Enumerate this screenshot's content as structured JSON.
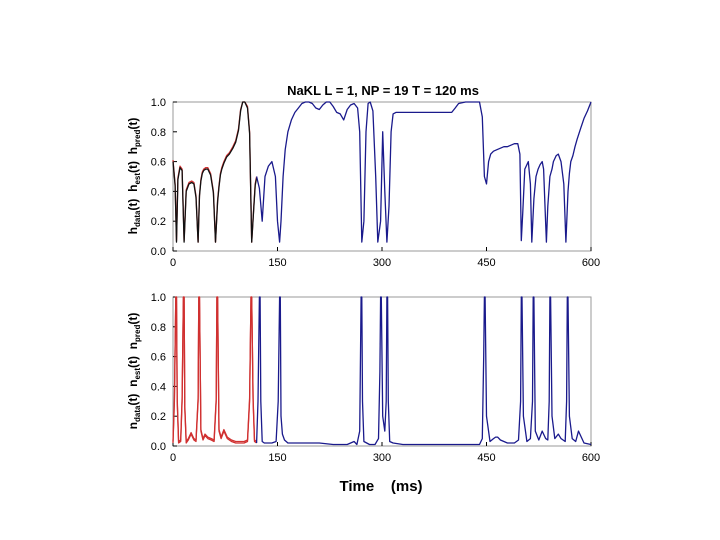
{
  "chart_data": [
    {
      "type": "line",
      "title": "NaKL  L = 1, NP = 19  T = 120 ms",
      "xlabel": "",
      "ylabel": "h_data(t)  h_est(t)  h_pred(t)",
      "ylabel_parts": [
        {
          "base": "h",
          "sub": "data",
          "tail": "(t)"
        },
        {
          "base": "h",
          "sub": "est",
          "tail": "(t)"
        },
        {
          "base": "h",
          "sub": "pred",
          "tail": "(t)"
        }
      ],
      "xlim": [
        0,
        600
      ],
      "ylim": [
        0,
        1.0
      ],
      "xticks": [
        "0",
        "150",
        "300",
        "450",
        "600"
      ],
      "yticks": [
        "0.0",
        "0.2",
        "0.4",
        "0.6",
        "0.8",
        "1.0"
      ],
      "grid": false,
      "legend": "none",
      "series": [
        {
          "color": "#d03030",
          "x": [
            0,
            3,
            5,
            7,
            10,
            13,
            16,
            19,
            23,
            27,
            30,
            33,
            36,
            38,
            40,
            42,
            44,
            47,
            50,
            54,
            58,
            61,
            64,
            66,
            68,
            70,
            73,
            77,
            81,
            86,
            90,
            94,
            97,
            100,
            103,
            107,
            110,
            113,
            116,
            118,
            120
          ],
          "y": [
            0.61,
            0.45,
            0.07,
            0.49,
            0.57,
            0.55,
            0.07,
            0.41,
            0.46,
            0.47,
            0.46,
            0.37,
            0.06,
            0.38,
            0.48,
            0.53,
            0.55,
            0.56,
            0.56,
            0.52,
            0.4,
            0.06,
            0.34,
            0.44,
            0.52,
            0.56,
            0.6,
            0.64,
            0.66,
            0.7,
            0.74,
            0.82,
            0.95,
            1.0,
            1.0,
            0.97,
            0.8,
            0.06,
            0.3,
            0.45,
            0.5
          ]
        },
        {
          "color": "#111111",
          "x": [
            0,
            3,
            5,
            7,
            10,
            13,
            16,
            19,
            23,
            27,
            30,
            33,
            36,
            38,
            40,
            42,
            44,
            47,
            50,
            54,
            58,
            61,
            64,
            66,
            68,
            70,
            73,
            77,
            81,
            86,
            90,
            94,
            97,
            100,
            103,
            107,
            110,
            113,
            116,
            118,
            120
          ],
          "y": [
            0.6,
            0.44,
            0.06,
            0.48,
            0.56,
            0.54,
            0.06,
            0.4,
            0.45,
            0.46,
            0.45,
            0.36,
            0.06,
            0.37,
            0.47,
            0.52,
            0.54,
            0.55,
            0.55,
            0.51,
            0.39,
            0.06,
            0.33,
            0.43,
            0.51,
            0.55,
            0.59,
            0.63,
            0.65,
            0.69,
            0.73,
            0.81,
            0.94,
            1.0,
            1.0,
            0.96,
            0.79,
            0.06,
            0.29,
            0.44,
            0.49
          ]
        },
        {
          "color": "#1a1a8c",
          "x": [
            120,
            124,
            128,
            132,
            137,
            142,
            147,
            150,
            153,
            155,
            158,
            161,
            165,
            170,
            175,
            180,
            185,
            190,
            195,
            200,
            205,
            210,
            215,
            220,
            225,
            230,
            235,
            240,
            245,
            250,
            255,
            260,
            265,
            268,
            271,
            274,
            277,
            280,
            283,
            287,
            291,
            294,
            298,
            301,
            304,
            307,
            310,
            313,
            316,
            320,
            330,
            340,
            360,
            380,
            400,
            405,
            410,
            420,
            430,
            440,
            444,
            447,
            450,
            453,
            456,
            460,
            465,
            470,
            475,
            480,
            485,
            490,
            495,
            498,
            500,
            502,
            505,
            510,
            513,
            515,
            518,
            521,
            524,
            527,
            530,
            532,
            534,
            536,
            538,
            541,
            544,
            546,
            548,
            550,
            553,
            557,
            561,
            564,
            567,
            569,
            571,
            574,
            577,
            580,
            585,
            590,
            595,
            600
          ],
          "y": [
            0.5,
            0.42,
            0.2,
            0.5,
            0.57,
            0.6,
            0.5,
            0.2,
            0.06,
            0.2,
            0.5,
            0.68,
            0.8,
            0.88,
            0.93,
            0.96,
            0.99,
            1.0,
            1.0,
            0.99,
            0.96,
            0.95,
            0.98,
            1.0,
            1.0,
            0.97,
            0.93,
            0.92,
            0.88,
            0.95,
            0.98,
            0.99,
            0.96,
            0.8,
            0.06,
            0.2,
            0.8,
            0.99,
            1.0,
            0.94,
            0.5,
            0.06,
            0.2,
            0.8,
            0.4,
            0.06,
            0.3,
            0.8,
            0.92,
            0.93,
            0.93,
            0.93,
            0.93,
            0.93,
            0.93,
            0.96,
            0.99,
            1.0,
            1.0,
            1.0,
            0.9,
            0.5,
            0.45,
            0.6,
            0.65,
            0.67,
            0.68,
            0.69,
            0.7,
            0.7,
            0.71,
            0.72,
            0.72,
            0.65,
            0.07,
            0.25,
            0.55,
            0.6,
            0.45,
            0.06,
            0.35,
            0.5,
            0.55,
            0.58,
            0.6,
            0.55,
            0.3,
            0.06,
            0.3,
            0.5,
            0.55,
            0.6,
            0.62,
            0.64,
            0.65,
            0.6,
            0.45,
            0.06,
            0.4,
            0.52,
            0.6,
            0.64,
            0.7,
            0.75,
            0.82,
            0.89,
            0.94,
            1.0
          ]
        }
      ]
    },
    {
      "type": "line",
      "xlabel": "Time    (ms)",
      "ylabel": "n_data(t)  n_est(t)  n_pred(t)",
      "ylabel_parts": [
        {
          "base": "n",
          "sub": "data",
          "tail": "(t)"
        },
        {
          "base": "n",
          "sub": "est",
          "tail": "(t)"
        },
        {
          "base": "n",
          "sub": "pred",
          "tail": "(t)"
        }
      ],
      "xlim": [
        0,
        600
      ],
      "ylim": [
        0,
        1.0
      ],
      "xticks": [
        "0",
        "150",
        "300",
        "450",
        "600"
      ],
      "yticks": [
        "0.0",
        "0.2",
        "0.4",
        "0.6",
        "0.8",
        "1.0"
      ],
      "grid": false,
      "legend": "none",
      "series": [
        {
          "color": "#d03030",
          "x": [
            0,
            2,
            4,
            5,
            6,
            8,
            11,
            13,
            15,
            16,
            17,
            19,
            22,
            26,
            30,
            33,
            36,
            37,
            38,
            40,
            43,
            46,
            50,
            55,
            59,
            62,
            63,
            64,
            66,
            69,
            73,
            78,
            84,
            90,
            96,
            102,
            107,
            110,
            112,
            113,
            115,
            117,
            120
          ],
          "y": [
            0.02,
            0.3,
            1.0,
            1.0,
            0.3,
            0.02,
            0.03,
            0.3,
            1.0,
            1.0,
            0.25,
            0.02,
            0.04,
            0.08,
            0.04,
            0.03,
            0.3,
            1.0,
            1.0,
            0.1,
            0.04,
            0.07,
            0.05,
            0.04,
            0.03,
            0.3,
            1.0,
            1.0,
            0.1,
            0.05,
            0.1,
            0.05,
            0.03,
            0.02,
            0.02,
            0.02,
            0.03,
            0.3,
            1.0,
            1.0,
            0.3,
            0.03,
            0.02
          ]
        },
        {
          "color": "#d03030",
          "x": [
            0,
            2,
            4,
            5,
            6,
            8,
            11,
            13,
            15,
            16,
            17,
            19,
            22,
            26,
            30,
            33,
            36,
            37,
            38,
            40,
            43,
            46,
            50,
            55,
            59,
            62,
            63,
            64,
            66,
            69,
            73,
            78,
            84,
            90,
            96,
            102,
            107,
            110,
            112,
            113,
            115,
            117,
            120
          ],
          "y": [
            0.03,
            0.32,
            1.0,
            1.0,
            0.32,
            0.03,
            0.04,
            0.32,
            1.0,
            1.0,
            0.27,
            0.03,
            0.05,
            0.09,
            0.05,
            0.04,
            0.32,
            1.0,
            1.0,
            0.11,
            0.05,
            0.08,
            0.06,
            0.05,
            0.04,
            0.32,
            1.0,
            1.0,
            0.11,
            0.06,
            0.11,
            0.06,
            0.04,
            0.03,
            0.03,
            0.03,
            0.04,
            0.32,
            1.0,
            1.0,
            0.32,
            0.04,
            0.03
          ]
        },
        {
          "color": "#1a1a8c",
          "x": [
            120,
            122,
            124,
            125,
            126,
            128,
            131,
            136,
            142,
            148,
            151,
            153,
            154,
            155,
            157,
            160,
            165,
            175,
            190,
            210,
            230,
            250,
            260,
            264,
            268,
            270,
            271,
            272,
            274,
            278,
            282,
            290,
            295,
            297,
            298,
            299,
            301,
            304,
            306,
            307,
            308,
            309,
            311,
            316,
            330,
            360,
            400,
            430,
            440,
            444,
            446,
            447,
            448,
            450,
            455,
            460,
            463,
            466,
            470,
            480,
            490,
            496,
            499,
            500,
            501,
            503,
            508,
            513,
            516,
            517,
            518,
            520,
            525,
            530,
            535,
            538,
            540,
            541,
            542,
            544,
            548,
            553,
            557,
            560,
            563,
            565,
            566,
            567,
            569,
            573,
            578,
            582,
            590,
            600
          ],
          "y": [
            0.02,
            0.3,
            1.0,
            1.0,
            0.3,
            0.03,
            0.02,
            0.02,
            0.02,
            0.03,
            0.3,
            1.0,
            1.0,
            0.2,
            0.08,
            0.04,
            0.02,
            0.02,
            0.02,
            0.02,
            0.01,
            0.01,
            0.03,
            0.01,
            0.1,
            1.0,
            1.0,
            0.3,
            0.03,
            0.02,
            0.01,
            0.01,
            0.05,
            0.5,
            1.0,
            1.0,
            0.2,
            0.1,
            0.3,
            1.0,
            1.0,
            0.3,
            0.03,
            0.02,
            0.01,
            0.01,
            0.01,
            0.01,
            0.01,
            0.05,
            0.6,
            1.0,
            1.0,
            0.2,
            0.03,
            0.05,
            0.06,
            0.06,
            0.04,
            0.02,
            0.02,
            0.04,
            0.3,
            1.0,
            1.0,
            0.2,
            0.03,
            0.05,
            0.3,
            1.0,
            1.0,
            0.1,
            0.04,
            0.1,
            0.05,
            0.04,
            0.3,
            1.0,
            1.0,
            0.2,
            0.05,
            0.08,
            0.05,
            0.04,
            0.03,
            0.3,
            1.0,
            1.0,
            0.2,
            0.05,
            0.03,
            0.1,
            0.02,
            0.01
          ]
        }
      ]
    }
  ]
}
